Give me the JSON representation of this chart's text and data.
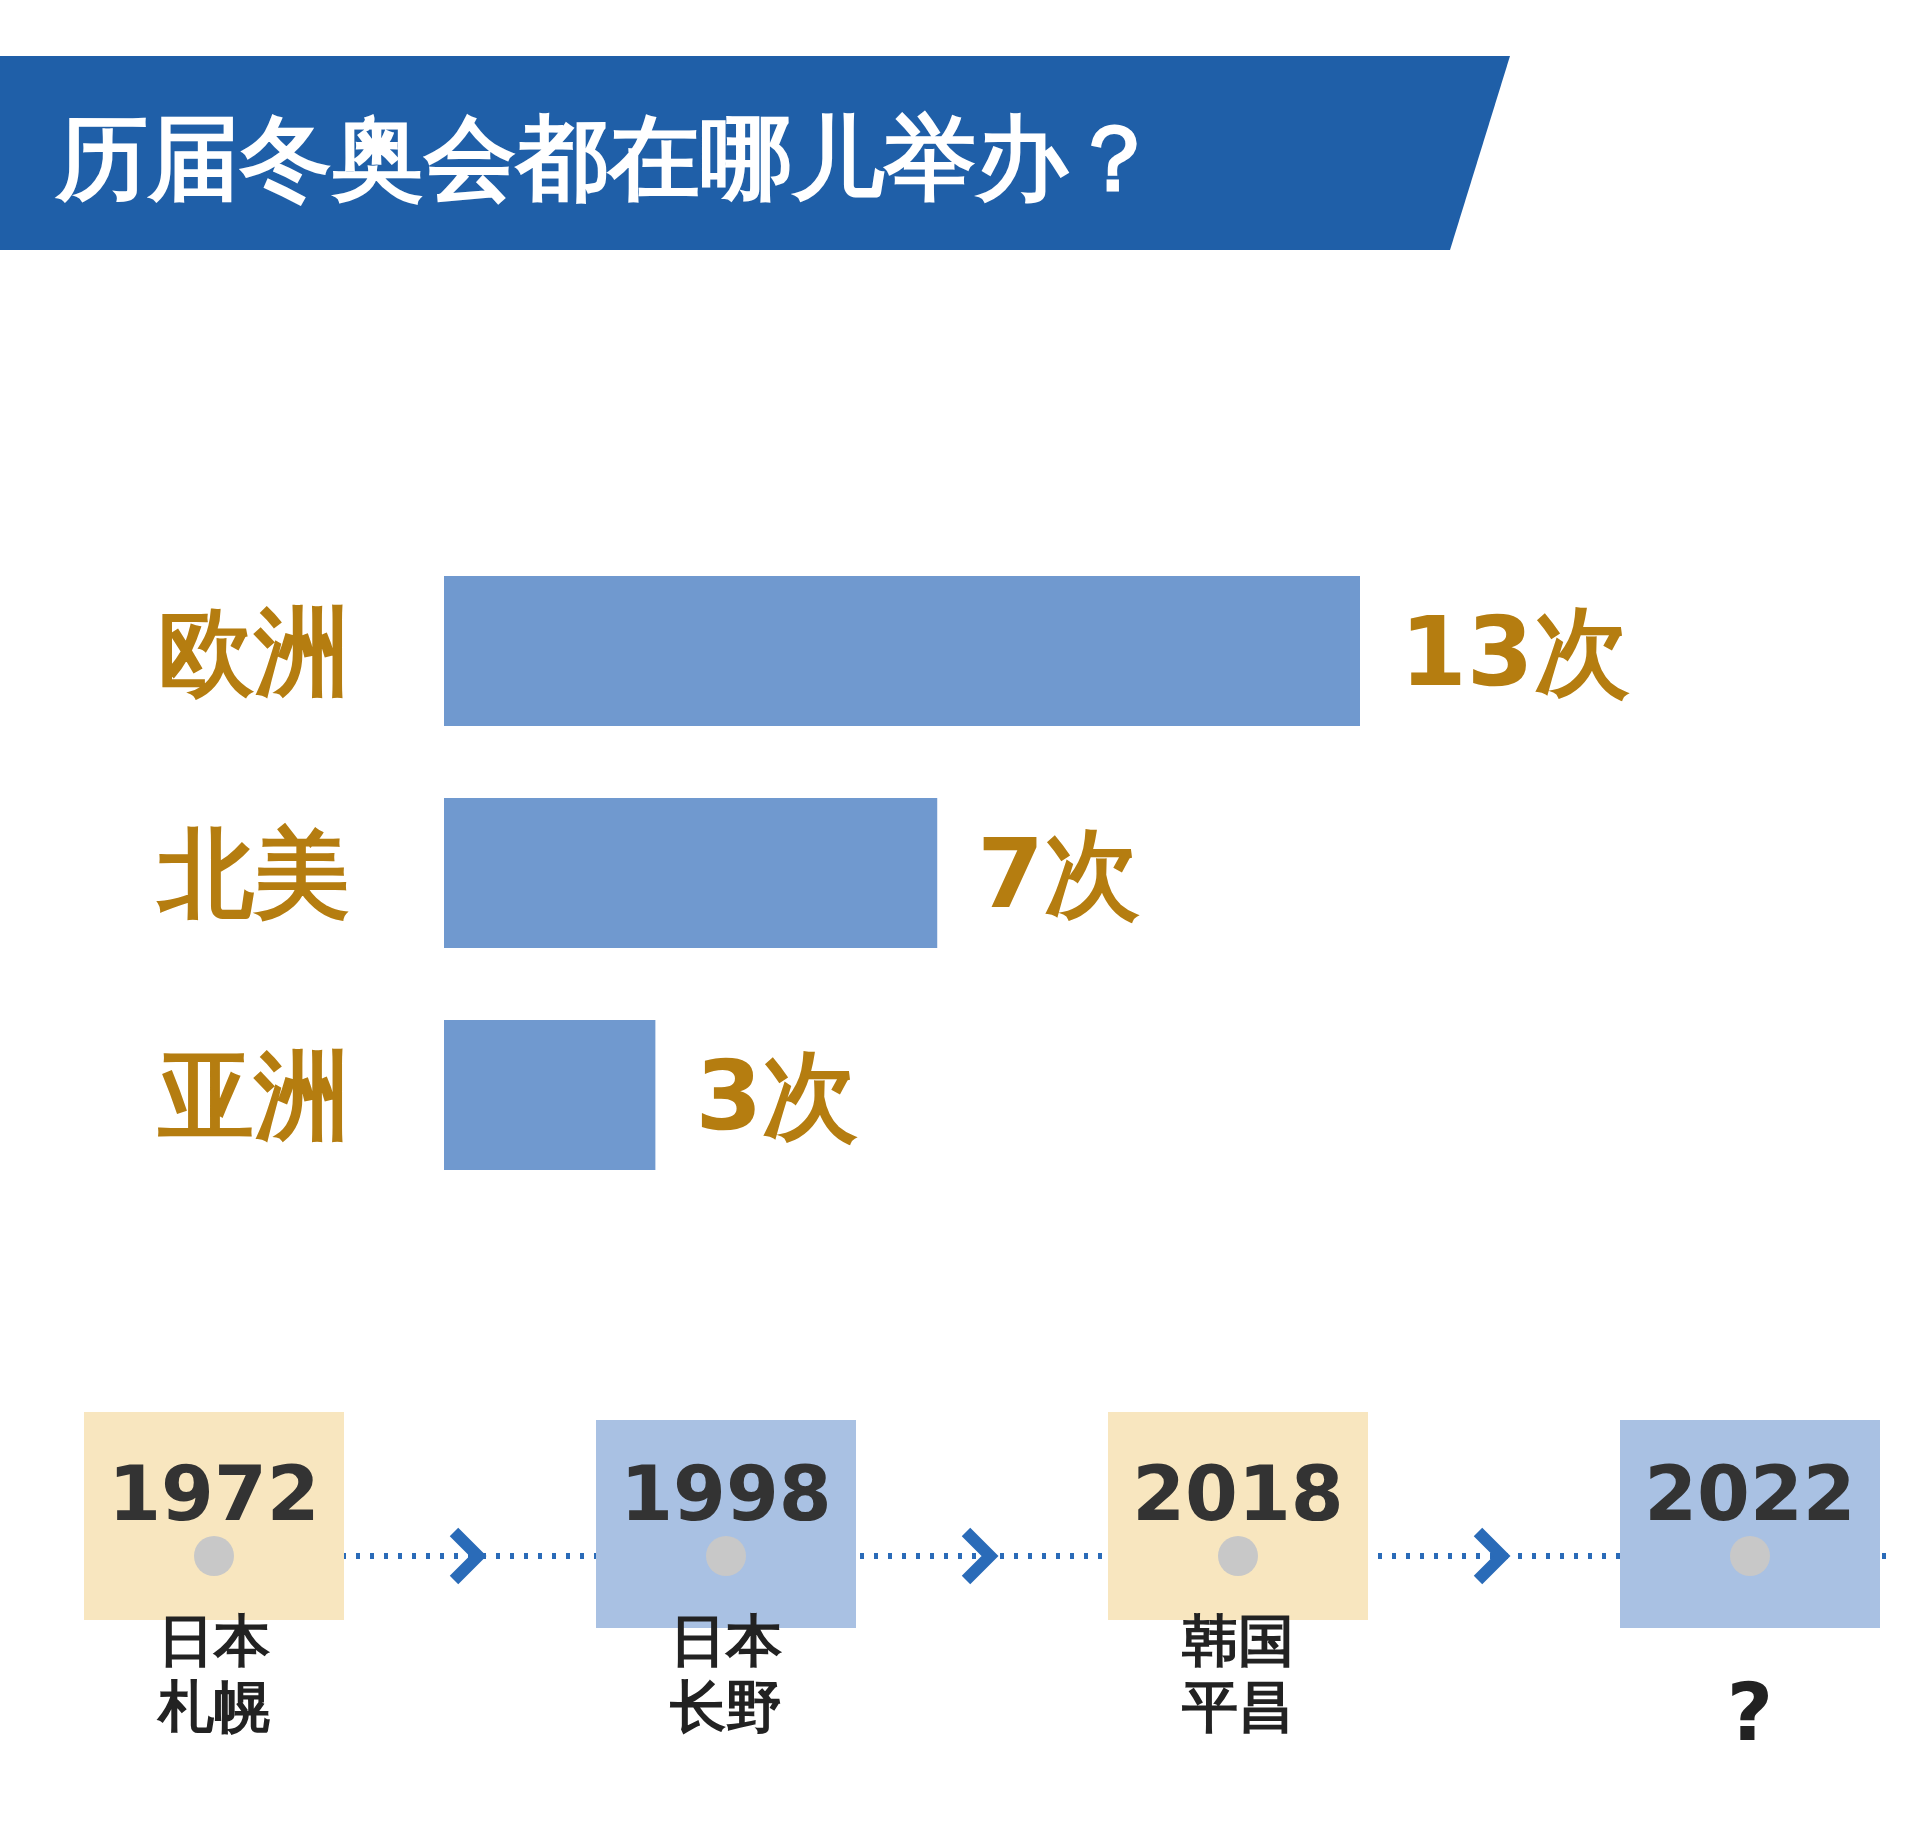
{
  "chart_data": {
    "type": "bar",
    "orientation": "horizontal",
    "title": "历届冬奥会都在哪儿举办？",
    "categories": [
      "欧洲",
      "北美",
      "亚洲"
    ],
    "values": [
      13,
      7,
      3
    ],
    "color": "#7099cf",
    "value_labels": [
      "13次",
      "7次",
      "3次"
    ],
    "annotations": [
      "1972",
      "日本札幌",
      "1998",
      "日本长野",
      "2018",
      "韩国平昌",
      "2022",
      "?"
    ]
  }
}
